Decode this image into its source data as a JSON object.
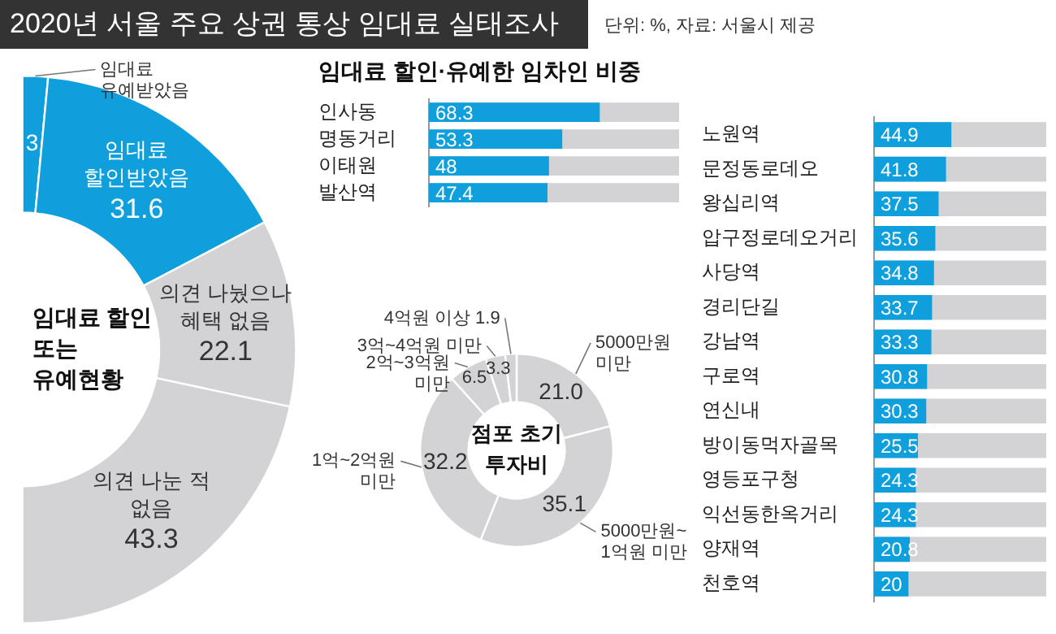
{
  "chart_data": [
    {
      "type": "donut",
      "title": "임대료 할인 또는 유예현황",
      "annotations": [
        "2020년 서울 주요 상권 통상 임대료 실태조사",
        "단위: %, 자료: 서울시 제공"
      ],
      "categories": [
        "임대료 유예받았음",
        "임대료 할인받았음",
        "의견 나눴으나 혜택 없음",
        "의견 나눈 적 없음"
      ],
      "values": [
        3,
        31.6,
        22.1,
        43.3
      ],
      "colors": [
        "#0f9fdc",
        "#0f9fdc",
        "#d3d3d5",
        "#d3d3d5"
      ],
      "data_labels": true,
      "legend": false
    },
    {
      "type": "bar",
      "orientation": "horizontal",
      "title": "임대료 할인·유예한 임차인 비중",
      "categories": [
        "인사동",
        "명동거리",
        "이태원",
        "발산역"
      ],
      "values": [
        68.3,
        53.3,
        48,
        47.4
      ],
      "color": "#0f9fdc",
      "xlim": [
        0,
        100
      ],
      "tick_labels": "y",
      "data_labels": true,
      "grid": false,
      "legend": false
    },
    {
      "type": "bar",
      "orientation": "horizontal",
      "categories": [
        "노원역",
        "문정동로데오",
        "왕십리역",
        "압구정로데오거리",
        "사당역",
        "경리단길",
        "강남역",
        "구로역",
        "연신내",
        "방이동먹자골목",
        "영등포구청",
        "익선동한옥거리",
        "양재역",
        "천호역"
      ],
      "values": [
        44.9,
        41.8,
        37.5,
        35.6,
        34.8,
        33.7,
        33.3,
        30.8,
        30.3,
        25.5,
        24.3,
        24.3,
        20.8,
        20
      ],
      "color": "#0f9fdc",
      "xlim": [
        0,
        100
      ],
      "tick_labels": "y",
      "data_labels": true,
      "grid": false,
      "legend": false
    },
    {
      "type": "donut",
      "title": "점포 초기 투자비",
      "categories": [
        "5000만원 미만",
        "5000만원~1억원 미만",
        "1억~2억원 미만",
        "2억~3억원 미만",
        "3억~4억원 미만",
        "4억원 이상"
      ],
      "values": [
        21.0,
        35.1,
        32.2,
        6.5,
        3.3,
        1.9
      ],
      "value_labels": [
        "21.0",
        "35.1",
        "32.2",
        "6.5",
        "3.3",
        "1.9"
      ],
      "colors": [
        "#d3d3d5",
        "#d3d3d5",
        "#d3d3d5",
        "#d3d3d5",
        "#d3d3d5",
        "#d3d3d5"
      ],
      "legend": false
    }
  ]
}
